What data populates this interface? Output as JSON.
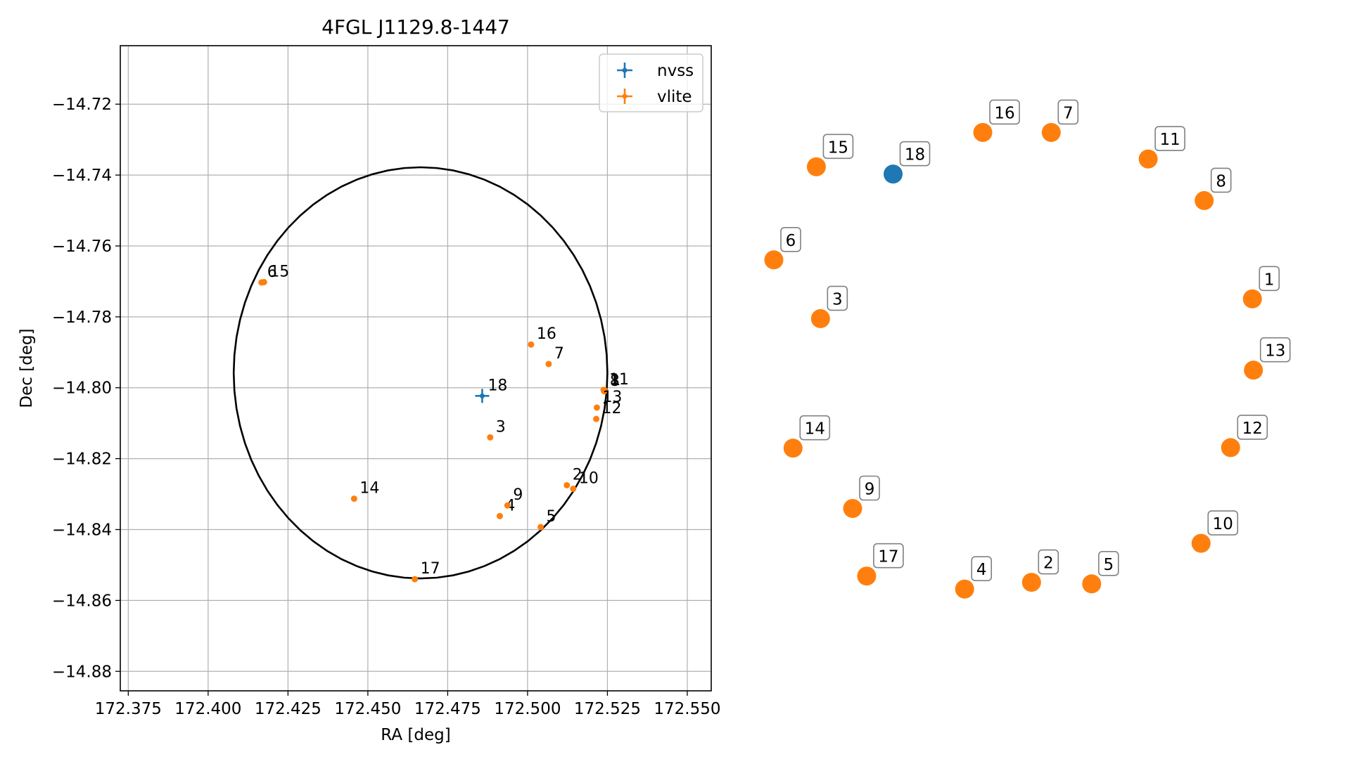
{
  "chart_data": [
    {
      "type": "scatter",
      "title": "4FGL J1129.8-1447",
      "xlabel": "RA [deg]",
      "ylabel": "Dec [deg]",
      "xlim": [
        172.3725,
        172.5575
      ],
      "ylim": [
        -14.8855,
        -14.7035
      ],
      "xticks": [
        "172.375",
        "172.400",
        "172.425",
        "172.450",
        "172.475",
        "172.500",
        "172.525",
        "172.550"
      ],
      "yticks": [
        "−14.72",
        "−14.74",
        "−14.76",
        "−14.78",
        "−14.80",
        "−14.82",
        "−14.84",
        "−14.86",
        "−14.88"
      ],
      "grid": true,
      "legend_position": "top-right",
      "ellipse": {
        "center": [
          172.4665,
          -14.7958
        ],
        "ra_radius": 0.0585,
        "dec_radius": 0.058
      },
      "series": [
        {
          "name": "nvss",
          "color": "#1f77b4",
          "marker": "plus-errorbar",
          "points": [
            {
              "label": "18",
              "ra": 172.4858,
              "dec": -14.8023
            }
          ]
        },
        {
          "name": "vlite",
          "color": "#ff7f0e",
          "marker": "dot",
          "points": [
            {
              "label": "1",
              "ra": 172.5243,
              "dec": -14.8008
            },
            {
              "label": "2",
              "ra": 172.5123,
              "dec": -14.8275
            },
            {
              "label": "3",
              "ra": 172.4883,
              "dec": -14.814
            },
            {
              "label": "4",
              "ra": 172.4913,
              "dec": -14.8362
            },
            {
              "label": "5",
              "ra": 172.5041,
              "dec": -14.8393
            },
            {
              "label": "6",
              "ra": 172.4167,
              "dec": -14.7703
            },
            {
              "label": "7",
              "ra": 172.5066,
              "dec": -14.7933
            },
            {
              "label": "8",
              "ra": 172.524,
              "dec": -14.801
            },
            {
              "label": "9",
              "ra": 172.4937,
              "dec": -14.8332
            },
            {
              "label": "10",
              "ra": 172.5143,
              "dec": -14.8285
            },
            {
              "label": "11",
              "ra": 172.5238,
              "dec": -14.8006
            },
            {
              "label": "12",
              "ra": 172.5215,
              "dec": -14.8088
            },
            {
              "label": "13",
              "ra": 172.5217,
              "dec": -14.8056
            },
            {
              "label": "14",
              "ra": 172.4457,
              "dec": -14.8313
            },
            {
              "label": "15",
              "ra": 172.4175,
              "dec": -14.7702
            },
            {
              "label": "16",
              "ra": 172.5011,
              "dec": -14.7878
            },
            {
              "label": "17",
              "ra": 172.4647,
              "dec": -14.854
            }
          ]
        }
      ]
    },
    {
      "type": "scatter",
      "title": "",
      "axes": "off",
      "points": [
        {
          "label": "1",
          "series": "vlite",
          "x": 0.923,
          "y": 0.628
        },
        {
          "label": "2",
          "series": "vlite",
          "x": 0.497,
          "y": 0.083
        },
        {
          "label": "3",
          "series": "vlite",
          "x": 0.09,
          "y": 0.59
        },
        {
          "label": "4",
          "series": "vlite",
          "x": 0.368,
          "y": 0.07
        },
        {
          "label": "5",
          "series": "vlite",
          "x": 0.613,
          "y": 0.08
        },
        {
          "label": "6",
          "series": "vlite",
          "x": 0.0,
          "y": 0.703
        },
        {
          "label": "7",
          "series": "vlite",
          "x": 0.535,
          "y": 0.948
        },
        {
          "label": "8",
          "series": "vlite",
          "x": 0.83,
          "y": 0.817
        },
        {
          "label": "9",
          "series": "vlite",
          "x": 0.152,
          "y": 0.225
        },
        {
          "label": "10",
          "series": "vlite",
          "x": 0.824,
          "y": 0.158
        },
        {
          "label": "11",
          "series": "vlite",
          "x": 0.722,
          "y": 0.897
        },
        {
          "label": "12",
          "series": "vlite",
          "x": 0.881,
          "y": 0.342
        },
        {
          "label": "13",
          "series": "vlite",
          "x": 0.925,
          "y": 0.491
        },
        {
          "label": "14",
          "series": "vlite",
          "x": 0.037,
          "y": 0.341
        },
        {
          "label": "15",
          "series": "vlite",
          "x": 0.082,
          "y": 0.882
        },
        {
          "label": "16",
          "series": "vlite",
          "x": 0.403,
          "y": 0.948
        },
        {
          "label": "17",
          "series": "vlite",
          "x": 0.179,
          "y": 0.095
        },
        {
          "label": "18",
          "series": "nvss",
          "x": 0.23,
          "y": 0.868
        }
      ]
    }
  ]
}
